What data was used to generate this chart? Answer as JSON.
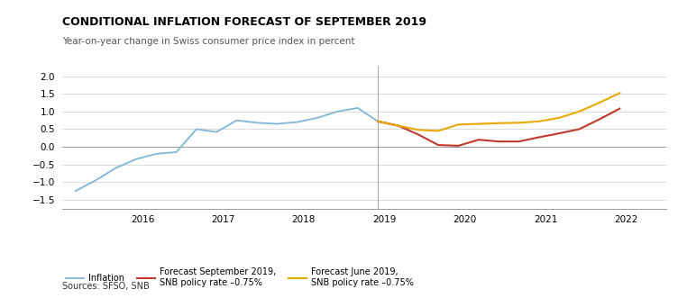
{
  "title": "CONDITIONAL INFLATION FORECAST OF SEPTEMBER 2019",
  "subtitle": "Year-on-year change in Swiss consumer price index in percent",
  "source": "Sources: SFSO, SNB",
  "top_bar_color": "#1a1a1a",
  "background_color": "#ffffff",
  "ylim": [
    -1.75,
    2.3
  ],
  "yticks": [
    -1.5,
    -1.0,
    -0.5,
    0.0,
    0.5,
    1.0,
    1.5,
    2.0
  ],
  "inflation": {
    "x": [
      2015.17,
      2015.42,
      2015.67,
      2015.92,
      2016.17,
      2016.42,
      2016.67,
      2016.92,
      2017.17,
      2017.42,
      2017.67,
      2017.92,
      2018.17,
      2018.42,
      2018.67,
      2018.92,
      2019.17
    ],
    "y": [
      -1.25,
      -0.95,
      -0.6,
      -0.35,
      -0.2,
      -0.15,
      0.5,
      0.42,
      0.75,
      0.68,
      0.65,
      0.7,
      0.82,
      1.0,
      1.1,
      0.72,
      0.6
    ],
    "color": "#7eb6d9",
    "label": "Inflation"
  },
  "forecast_sep": {
    "x": [
      2018.92,
      2019.17,
      2019.42,
      2019.67,
      2019.92,
      2020.17,
      2020.42,
      2020.67,
      2020.92,
      2021.17,
      2021.42,
      2021.67,
      2021.92
    ],
    "y": [
      0.72,
      0.6,
      0.35,
      0.05,
      0.03,
      0.2,
      0.15,
      0.15,
      0.27,
      0.38,
      0.5,
      0.78,
      1.08
    ],
    "color": "#c0392b",
    "label": "Forecast September 2019,\nSNB policy rate –0.75%"
  },
  "forecast_jun": {
    "x": [
      2018.92,
      2019.17,
      2019.42,
      2019.67,
      2019.92,
      2020.17,
      2020.42,
      2020.67,
      2020.92,
      2021.17,
      2021.42,
      2021.67,
      2021.92
    ],
    "y": [
      0.72,
      0.6,
      0.48,
      0.45,
      0.63,
      0.65,
      0.67,
      0.68,
      0.72,
      0.82,
      1.0,
      1.25,
      1.52
    ],
    "color": "#e8a800",
    "label": "Forecast June 2019,\nSNB policy rate –0.75%"
  },
  "vline_x": 2018.92,
  "xlim": [
    2015.0,
    2022.5
  ],
  "xtick_positions": [
    2016,
    2017,
    2018,
    2019,
    2020,
    2021,
    2022
  ],
  "xtick_labels": [
    "2016",
    "2017",
    "2018",
    "2019",
    "2020",
    "2021",
    "2022"
  ]
}
